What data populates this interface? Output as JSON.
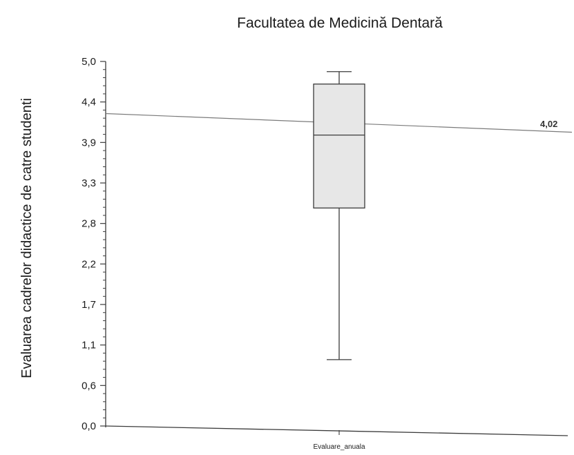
{
  "chart_data": {
    "type": "box",
    "title": "Facultatea de Medicină Dentară",
    "xlabel": "",
    "ylabel": "Evaluarea cadrelor didactice de catre studenti",
    "ylim": [
      0,
      5
    ],
    "yticks": [
      "5,0",
      "4,4",
      "3,9",
      "3,3",
      "2,8",
      "2,2",
      "1,7",
      "1,1",
      "0,6",
      "0,0"
    ],
    "categories": [
      "Evaluare_anuala"
    ],
    "boxes": [
      {
        "category": "Evaluare_anuala",
        "whisker_low": 0.91,
        "q1": 2.99,
        "median": 3.99,
        "q3": 4.69,
        "whisker_high": 4.86
      }
    ],
    "reference_line": {
      "value": 4.02,
      "label": "4,02"
    },
    "grid": false,
    "legend": "none",
    "colors": {
      "box_fill": "#e7e7e7",
      "lines": "#3a3a3a",
      "reference_line": "#7a7a7a"
    }
  }
}
